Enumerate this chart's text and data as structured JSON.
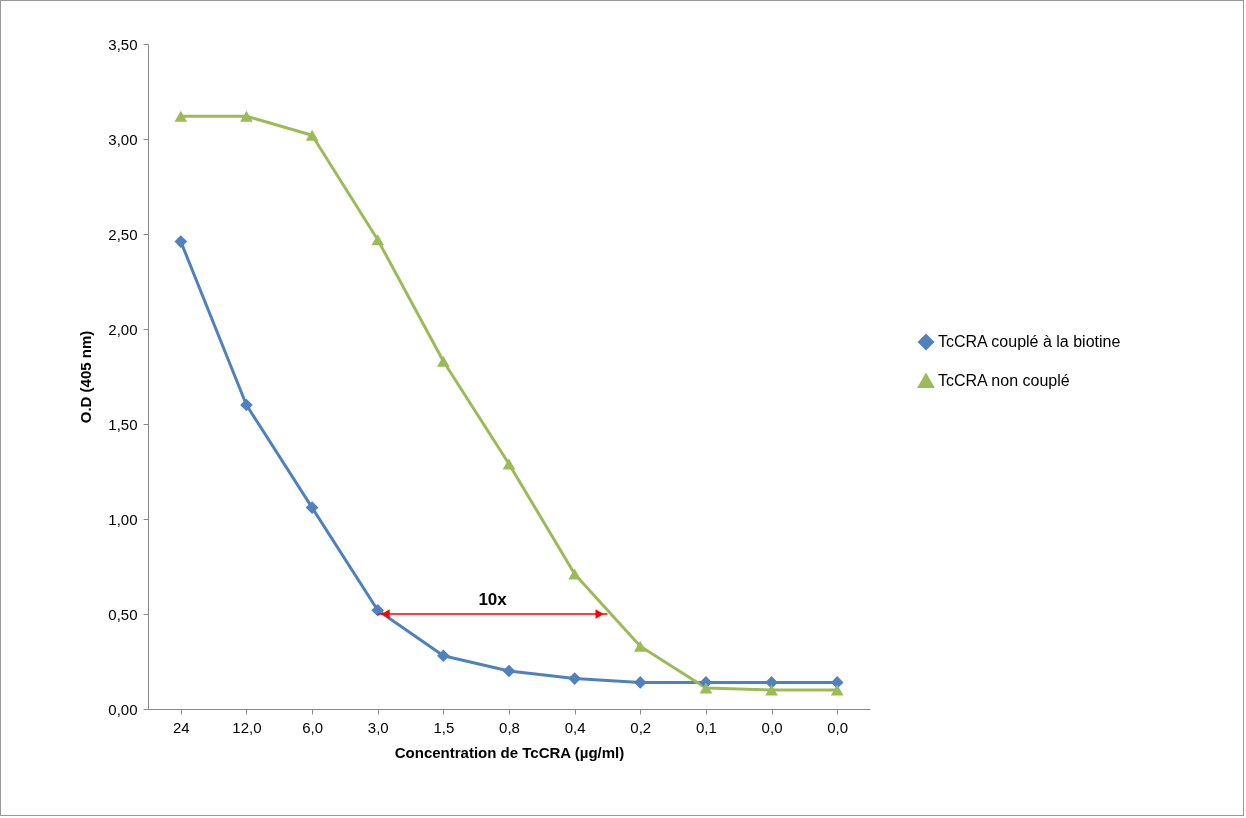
{
  "chart_data": {
    "type": "line",
    "xlabel": "Concentration de TcCRA (µg/ml)",
    "ylabel": "O.D (405 nm)",
    "categories": [
      "24",
      "12,0",
      "6,0",
      "3,0",
      "1,5",
      "0,8",
      "0,4",
      "0,2",
      "0,1",
      "0,0",
      "0,0"
    ],
    "series": [
      {
        "name": "TcCRA couplé à la biotine",
        "color": "#4f81bd",
        "marker": "diamond",
        "values": [
          2.46,
          1.6,
          1.06,
          0.52,
          0.28,
          0.2,
          0.16,
          0.14,
          0.14,
          0.14,
          0.14
        ]
      },
      {
        "name": "TcCRA non couplé",
        "color": "#9bbb59",
        "marker": "triangle",
        "values": [
          3.12,
          3.12,
          3.02,
          2.47,
          1.83,
          1.29,
          0.71,
          0.33,
          0.11,
          0.1,
          0.1
        ]
      }
    ],
    "ylim": [
      0,
      3.5
    ],
    "yticks": [
      {
        "value": 0,
        "label": "0,00"
      },
      {
        "value": 0.5,
        "label": "0,50"
      },
      {
        "value": 1,
        "label": "1,00"
      },
      {
        "value": 1.5,
        "label": "1,50"
      },
      {
        "value": 2,
        "label": "2,00"
      },
      {
        "value": 2.5,
        "label": "2,50"
      },
      {
        "value": 3,
        "label": "3,00"
      },
      {
        "value": 3.5,
        "label": "3,50"
      }
    ],
    "annotations": [
      "10x"
    ],
    "legend": "right",
    "grid": false
  }
}
